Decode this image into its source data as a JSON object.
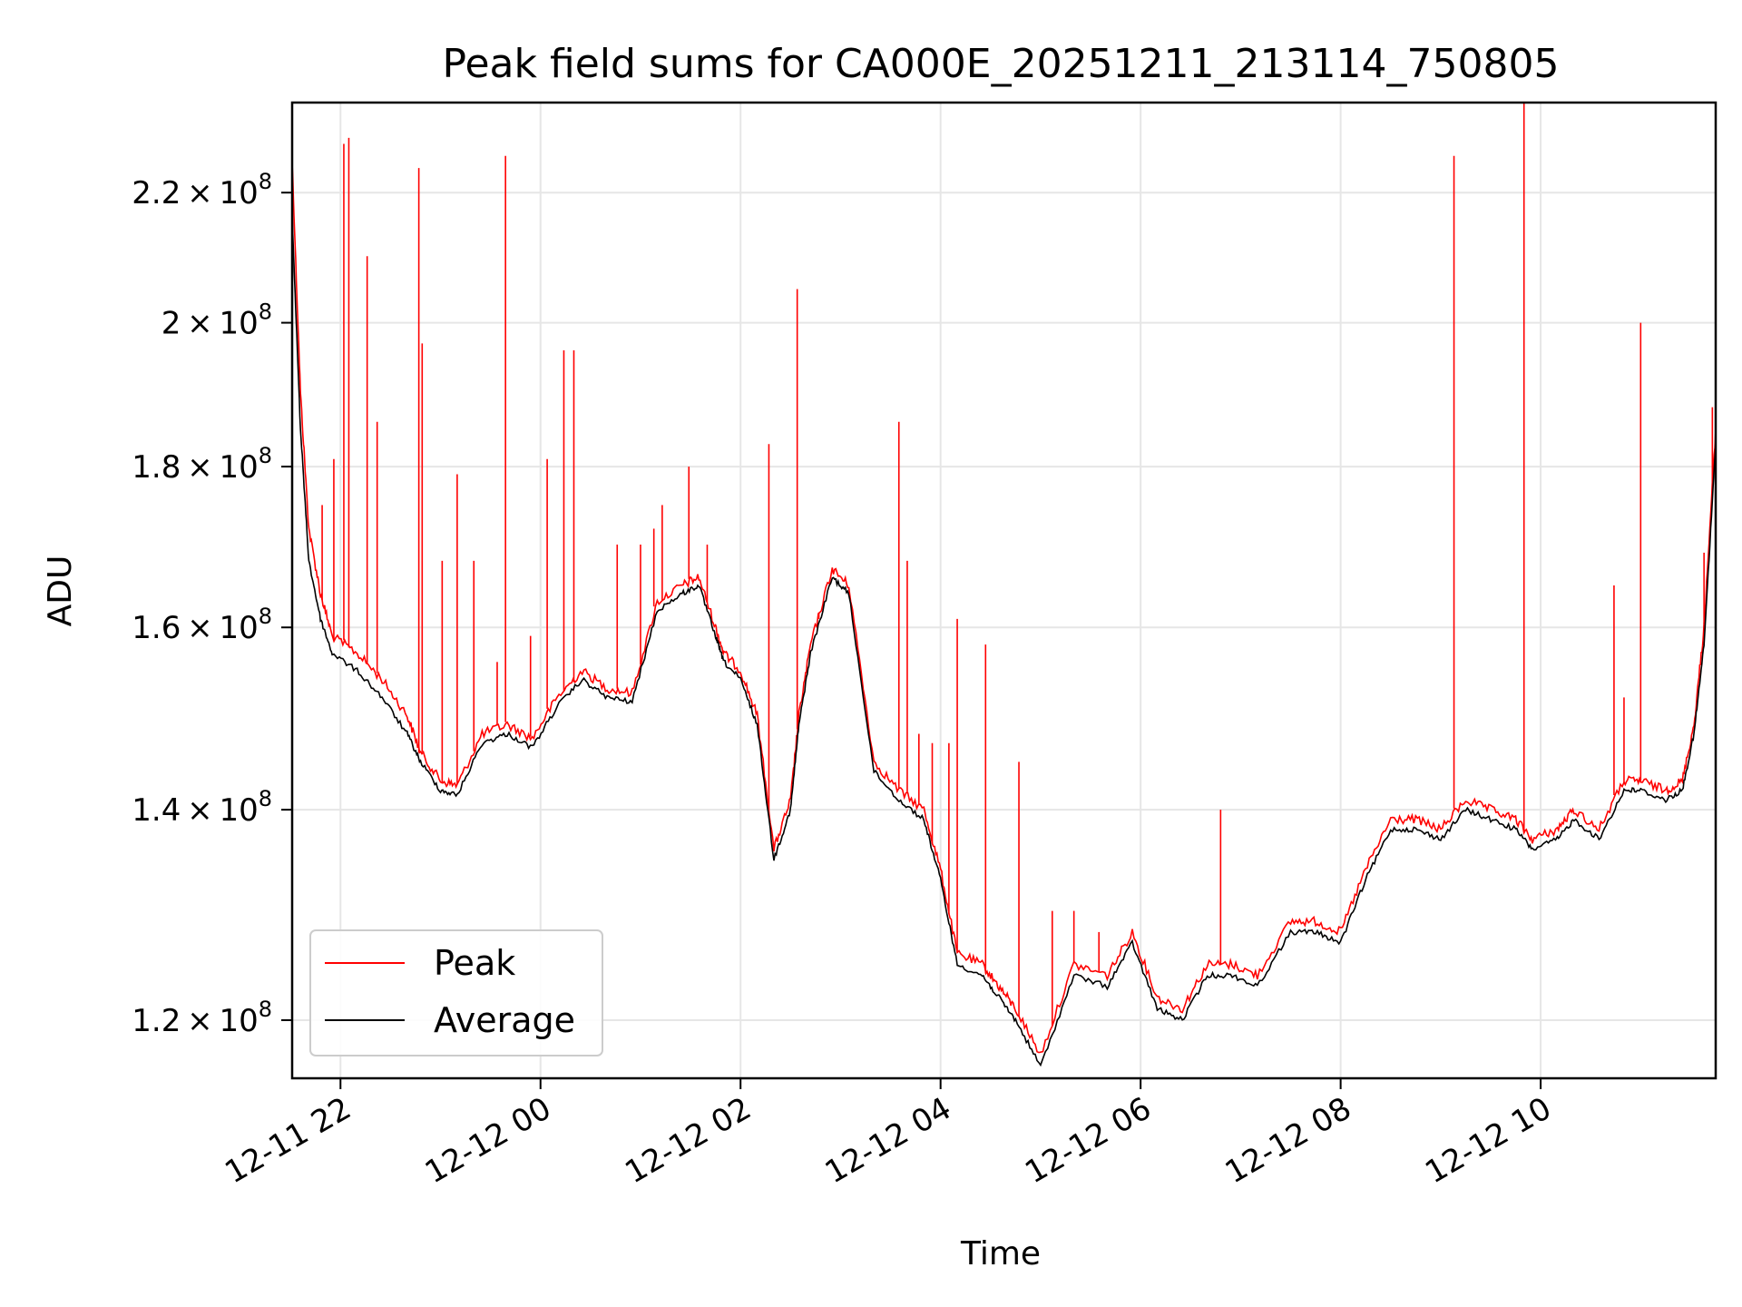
{
  "chart_data": {
    "type": "line",
    "title": "Peak field sums for CA000E_20251211_213114_750805",
    "xlabel": "Time",
    "ylabel": "ADU",
    "yscale": "log",
    "grid": true,
    "legend_position": "lower-left",
    "xlim": [
      "2025-12-11T21:31",
      "2025-12-12T11:45"
    ],
    "ylim": [
      115000000,
      235000000
    ],
    "x_ticks": [
      {
        "value": "2025-12-11T22:00",
        "label": "12-11 22"
      },
      {
        "value": "2025-12-12T00:00",
        "label": "12-12 00"
      },
      {
        "value": "2025-12-12T02:00",
        "label": "12-12 02"
      },
      {
        "value": "2025-12-12T04:00",
        "label": "12-12 04"
      },
      {
        "value": "2025-12-12T06:00",
        "label": "12-12 06"
      },
      {
        "value": "2025-12-12T08:00",
        "label": "12-12 08"
      },
      {
        "value": "2025-12-12T10:00",
        "label": "12-12 10"
      }
    ],
    "y_ticks": [
      {
        "value": 120000000,
        "mant": "1.2",
        "exp": "8"
      },
      {
        "value": 140000000,
        "mant": "1.4",
        "exp": "8"
      },
      {
        "value": 160000000,
        "mant": "1.6",
        "exp": "8"
      },
      {
        "value": 180000000,
        "mant": "1.8",
        "exp": "8"
      },
      {
        "value": 200000000,
        "mant": "2",
        "exp": "8"
      },
      {
        "value": 220000000,
        "mant": "2.2",
        "exp": "8"
      }
    ],
    "series": [
      {
        "name": "Peak",
        "color": "#ff0000",
        "x": [
          "2025-12-11T21:31",
          "2025-12-11T21:36",
          "2025-12-11T21:41",
          "2025-12-11T21:48",
          "2025-12-11T21:55",
          "2025-12-11T22:10",
          "2025-12-11T22:25",
          "2025-12-11T22:40",
          "2025-12-11T22:48",
          "2025-12-11T23:00",
          "2025-12-11T23:10",
          "2025-12-11T23:25",
          "2025-12-11T23:40",
          "2025-12-11T23:55",
          "2025-12-12T00:10",
          "2025-12-12T00:25",
          "2025-12-12T00:40",
          "2025-12-12T00:55",
          "2025-12-12T01:10",
          "2025-12-12T01:25",
          "2025-12-12T01:35",
          "2025-12-12T01:45",
          "2025-12-12T01:50",
          "2025-12-12T02:00",
          "2025-12-12T02:10",
          "2025-12-12T02:20",
          "2025-12-12T02:30",
          "2025-12-12T02:35",
          "2025-12-12T02:42",
          "2025-12-12T02:55",
          "2025-12-12T03:05",
          "2025-12-12T03:20",
          "2025-12-12T03:35",
          "2025-12-12T03:50",
          "2025-12-12T04:00",
          "2025-12-12T04:10",
          "2025-12-12T04:25",
          "2025-12-12T04:35",
          "2025-12-12T04:45",
          "2025-12-12T05:00",
          "2025-12-12T05:20",
          "2025-12-12T05:40",
          "2025-12-12T05:55",
          "2025-12-12T06:10",
          "2025-12-12T06:25",
          "2025-12-12T06:40",
          "2025-12-12T06:55",
          "2025-12-12T07:10",
          "2025-12-12T07:30",
          "2025-12-12T07:45",
          "2025-12-12T08:00",
          "2025-12-12T08:15",
          "2025-12-12T08:30",
          "2025-12-12T08:45",
          "2025-12-12T09:00",
          "2025-12-12T09:15",
          "2025-12-12T09:30",
          "2025-12-12T09:45",
          "2025-12-12T09:55",
          "2025-12-12T10:10",
          "2025-12-12T10:20",
          "2025-12-12T10:35",
          "2025-12-12T10:50",
          "2025-12-12T11:00",
          "2025-12-12T11:15",
          "2025-12-12T11:25",
          "2025-12-12T11:32",
          "2025-12-12T11:38",
          "2025-12-12T11:45"
        ],
        "y": [
          225000000,
          190000000,
          172000000,
          164000000,
          159000000,
          157000000,
          154000000,
          150000000,
          146000000,
          143000000,
          142500000,
          148000000,
          149000000,
          147500000,
          152000000,
          155000000,
          153000000,
          152500000,
          163000000,
          165000000,
          166000000,
          160000000,
          157000000,
          155000000,
          150000000,
          136000000,
          141000000,
          150000000,
          158000000,
          167000000,
          165000000,
          145000000,
          142000000,
          140000000,
          134000000,
          126000000,
          125000000,
          123000000,
          121000000,
          117000000,
          125000000,
          124000000,
          128000000,
          122000000,
          121000000,
          125000000,
          125000000,
          124000000,
          129000000,
          129000000,
          128000000,
          134000000,
          139000000,
          139000000,
          138000000,
          141000000,
          140000000,
          139000000,
          137000000,
          138000000,
          140000000,
          138000000,
          143000000,
          143000000,
          142000000,
          143000000,
          149000000,
          160000000,
          185000000
        ],
        "spikes": [
          [
            "2025-12-11T21:49",
            175000000
          ],
          [
            "2025-12-11T21:56",
            181000000
          ],
          [
            "2025-12-11T22:02",
            228000000
          ],
          [
            "2025-12-11T22:05",
            229000000
          ],
          [
            "2025-12-11T22:16",
            210000000
          ],
          [
            "2025-12-11T22:22",
            186000000
          ],
          [
            "2025-12-11T22:47",
            224000000
          ],
          [
            "2025-12-11T22:49",
            197000000
          ],
          [
            "2025-12-11T23:01",
            168000000
          ],
          [
            "2025-12-11T23:10",
            179000000
          ],
          [
            "2025-12-11T23:20",
            168000000
          ],
          [
            "2025-12-11T23:34",
            156000000
          ],
          [
            "2025-12-11T23:39",
            226000000
          ],
          [
            "2025-12-11T23:54",
            159000000
          ],
          [
            "2025-12-12T00:04",
            181000000
          ],
          [
            "2025-12-12T00:14",
            196000000
          ],
          [
            "2025-12-12T00:20",
            196000000
          ],
          [
            "2025-12-12T00:46",
            170000000
          ],
          [
            "2025-12-12T01:00",
            170000000
          ],
          [
            "2025-12-12T01:08",
            172000000
          ],
          [
            "2025-12-12T01:13",
            175000000
          ],
          [
            "2025-12-12T01:29",
            180000000
          ],
          [
            "2025-12-12T01:40",
            170000000
          ],
          [
            "2025-12-12T02:17",
            183000000
          ],
          [
            "2025-12-12T02:34",
            205000000
          ],
          [
            "2025-12-12T02:47",
            161000000
          ],
          [
            "2025-12-12T03:35",
            186000000
          ],
          [
            "2025-12-12T03:40",
            168000000
          ],
          [
            "2025-12-12T03:47",
            148000000
          ],
          [
            "2025-12-12T03:55",
            147000000
          ],
          [
            "2025-12-12T04:05",
            147000000
          ],
          [
            "2025-12-12T04:10",
            161000000
          ],
          [
            "2025-12-12T04:27",
            158000000
          ],
          [
            "2025-12-12T04:47",
            145000000
          ],
          [
            "2025-12-12T05:07",
            130000000
          ],
          [
            "2025-12-12T05:20",
            130000000
          ],
          [
            "2025-12-12T05:35",
            128000000
          ],
          [
            "2025-12-12T06:48",
            140000000
          ],
          [
            "2025-12-12T09:08",
            226000000
          ],
          [
            "2025-12-12T09:50",
            236000000
          ],
          [
            "2025-12-12T10:44",
            165000000
          ],
          [
            "2025-12-12T10:50",
            152000000
          ],
          [
            "2025-12-12T11:00",
            200000000
          ],
          [
            "2025-12-12T11:38",
            169000000
          ],
          [
            "2025-12-12T11:43",
            188000000
          ]
        ]
      },
      {
        "name": "Average",
        "color": "#000000",
        "x": [
          "2025-12-11T21:31",
          "2025-12-11T21:36",
          "2025-12-11T21:41",
          "2025-12-11T21:48",
          "2025-12-11T21:55",
          "2025-12-11T22:10",
          "2025-12-11T22:25",
          "2025-12-11T22:40",
          "2025-12-11T22:48",
          "2025-12-11T23:00",
          "2025-12-11T23:10",
          "2025-12-11T23:25",
          "2025-12-11T23:40",
          "2025-12-11T23:55",
          "2025-12-12T00:10",
          "2025-12-12T00:25",
          "2025-12-12T00:40",
          "2025-12-12T00:55",
          "2025-12-12T01:10",
          "2025-12-12T01:25",
          "2025-12-12T01:35",
          "2025-12-12T01:45",
          "2025-12-12T01:50",
          "2025-12-12T02:00",
          "2025-12-12T02:10",
          "2025-12-12T02:20",
          "2025-12-12T02:30",
          "2025-12-12T02:35",
          "2025-12-12T02:42",
          "2025-12-12T02:55",
          "2025-12-12T03:05",
          "2025-12-12T03:20",
          "2025-12-12T03:35",
          "2025-12-12T03:50",
          "2025-12-12T04:00",
          "2025-12-12T04:10",
          "2025-12-12T04:25",
          "2025-12-12T04:35",
          "2025-12-12T04:45",
          "2025-12-12T05:00",
          "2025-12-12T05:20",
          "2025-12-12T05:40",
          "2025-12-12T05:55",
          "2025-12-12T06:10",
          "2025-12-12T06:25",
          "2025-12-12T06:40",
          "2025-12-12T06:55",
          "2025-12-12T07:10",
          "2025-12-12T07:30",
          "2025-12-12T07:45",
          "2025-12-12T08:00",
          "2025-12-12T08:15",
          "2025-12-12T08:30",
          "2025-12-12T08:45",
          "2025-12-12T09:00",
          "2025-12-12T09:15",
          "2025-12-12T09:30",
          "2025-12-12T09:45",
          "2025-12-12T09:55",
          "2025-12-12T10:10",
          "2025-12-12T10:20",
          "2025-12-12T10:35",
          "2025-12-12T10:50",
          "2025-12-12T11:00",
          "2025-12-12T11:15",
          "2025-12-12T11:25",
          "2025-12-12T11:32",
          "2025-12-12T11:38",
          "2025-12-12T11:45"
        ],
        "y": [
          216000000,
          185000000,
          168000000,
          161000000,
          157000000,
          155000000,
          152000000,
          148000000,
          145000000,
          142000000,
          141500000,
          147000000,
          148000000,
          146500000,
          151000000,
          154000000,
          152000000,
          151500000,
          162000000,
          164000000,
          165000000,
          159000000,
          156000000,
          154000000,
          149000000,
          135000000,
          140000000,
          149000000,
          157000000,
          166000000,
          164000000,
          144000000,
          141000000,
          139000000,
          133000000,
          125000000,
          124000000,
          122000000,
          120000000,
          116000000,
          124000000,
          123000000,
          127000000,
          121000000,
          120000000,
          124000000,
          124000000,
          123000000,
          128000000,
          128000000,
          127000000,
          133000000,
          138000000,
          138000000,
          137000000,
          140000000,
          139000000,
          138000000,
          136000000,
          137000000,
          139000000,
          137000000,
          142000000,
          142000000,
          141000000,
          142000000,
          148000000,
          158000000,
          183000000
        ]
      }
    ]
  }
}
